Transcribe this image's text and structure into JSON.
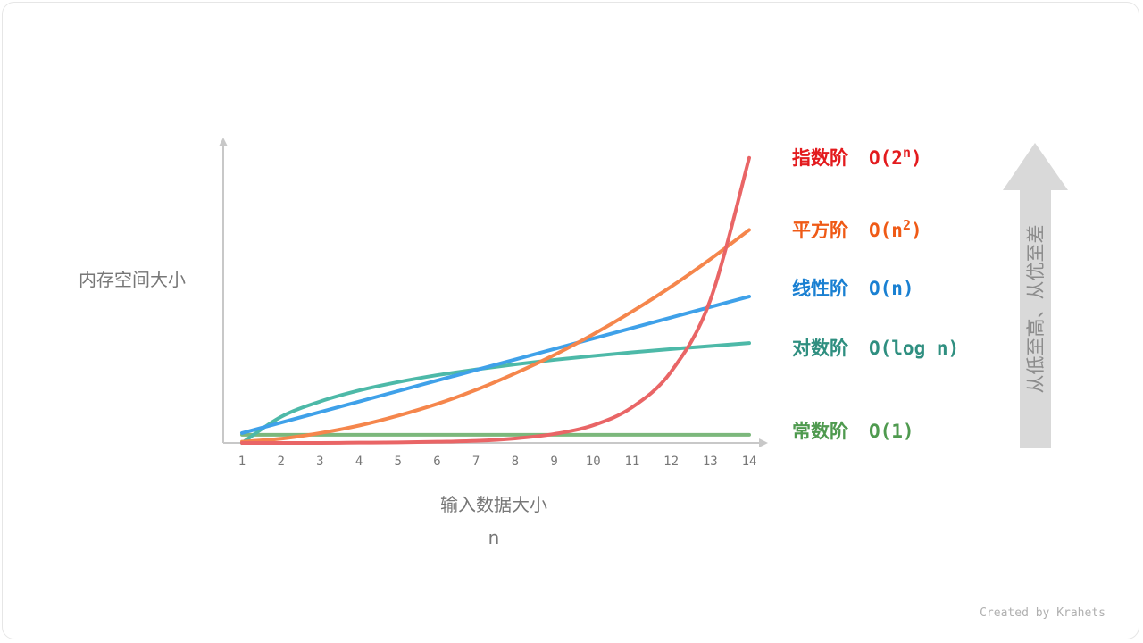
{
  "chart_data": {
    "type": "line",
    "xlabel": "输入数据大小",
    "xlabel_sub": "n",
    "ylabel": "内存空间大小",
    "x": [
      1,
      2,
      3,
      4,
      5,
      6,
      7,
      8,
      9,
      10,
      11,
      12,
      13,
      14
    ],
    "xticks": [
      "1",
      "2",
      "3",
      "4",
      "5",
      "6",
      "7",
      "8",
      "9",
      "10",
      "11",
      "12",
      "13",
      "14"
    ],
    "ylim": [
      0,
      100
    ],
    "grid": false,
    "series": [
      {
        "name": "指数阶",
        "complexity": {
          "pre": "O(2",
          "sup": "n",
          "post": ")"
        },
        "line_color": "#e96566",
        "label_color": "#e31b1e",
        "values": [
          0.0,
          0.0,
          0.0,
          0.1,
          0.2,
          0.4,
          0.7,
          1.5,
          3.0,
          5.9,
          11.9,
          23.8,
          47.5,
          95.0
        ]
      },
      {
        "name": "平方阶",
        "complexity": {
          "pre": "O(n",
          "sup": "2",
          "post": ")"
        },
        "line_color": "#f5864c",
        "label_color": "#ef5a16",
        "values": [
          0.4,
          1.4,
          3.3,
          5.8,
          9.1,
          13.0,
          17.7,
          23.2,
          29.3,
          36.2,
          43.8,
          52.1,
          61.2,
          71.0
        ]
      },
      {
        "name": "线性阶",
        "complexity": {
          "pre": "O(n)",
          "sup": "",
          "post": ""
        },
        "line_color": "#3fa1e9",
        "label_color": "#1a80d2",
        "values": [
          3.3,
          6.8,
          10.3,
          13.8,
          17.3,
          20.8,
          24.3,
          27.8,
          31.3,
          34.8,
          38.3,
          41.8,
          45.3,
          48.8
        ]
      },
      {
        "name": "对数阶",
        "complexity": {
          "pre": "O(log n)",
          "sup": "",
          "post": ""
        },
        "line_color": "#4db9a8",
        "label_color": "#2f8f80",
        "values": [
          0.0,
          8.7,
          13.8,
          17.5,
          20.3,
          22.6,
          24.5,
          26.2,
          27.7,
          29.0,
          30.2,
          31.3,
          32.3,
          33.3
        ]
      },
      {
        "name": "常数阶",
        "complexity": {
          "pre": "O(1)",
          "sup": "",
          "post": ""
        },
        "line_color": "#7cb87c",
        "label_color": "#4f9a4f",
        "values": [
          2.7,
          2.7,
          2.7,
          2.7,
          2.7,
          2.7,
          2.7,
          2.7,
          2.7,
          2.7,
          2.7,
          2.7,
          2.7,
          2.7
        ]
      }
    ]
  },
  "side_arrow": {
    "text": "从低至高、从优至差",
    "color": "#d9d9d9"
  },
  "credit": "Created by Krahets"
}
